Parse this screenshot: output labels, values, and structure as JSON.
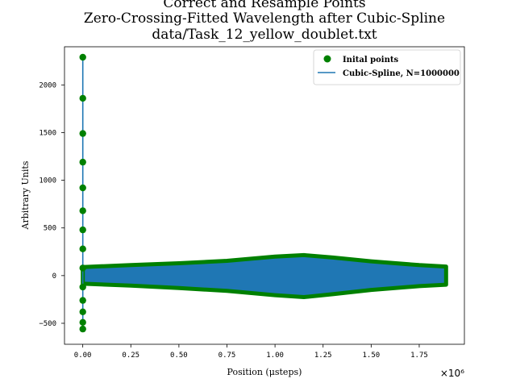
{
  "chart_data": {
    "type": "scatter",
    "title_lines": [
      "Correct and Resample Points",
      "Zero-Crossing-Fitted Wavelength after Cubic-Spline",
      "data/Task_12_yellow_doublet.txt"
    ],
    "xlabel": "Position (μsteps)",
    "ylabel": "Arbitrary Units",
    "x_offset_label": "×10⁶",
    "x_scale": 1000000,
    "xlim": [
      -95000,
      1985000
    ],
    "ylim": [
      -720,
      2400
    ],
    "xticks": [
      0,
      250000,
      500000,
      750000,
      1000000,
      1250000,
      1500000,
      1750000
    ],
    "xtick_labels": [
      "0.00",
      "0.25",
      "0.50",
      "0.75",
      "1.00",
      "1.25",
      "1.50",
      "1.75"
    ],
    "yticks": [
      -500,
      0,
      500,
      1000,
      1500,
      2000
    ],
    "ytick_labels": [
      "−500",
      "0",
      "500",
      "1000",
      "1500",
      "2000"
    ],
    "grid": false,
    "legend_position": "top-right",
    "series": [
      {
        "name": "Inital points",
        "kind": "scatter",
        "color": "#008000",
        "x": [
          0,
          0,
          0,
          0,
          0,
          0,
          0,
          0,
          0,
          0,
          0,
          0,
          0,
          0
        ],
        "y": [
          2290,
          1860,
          1490,
          1190,
          920,
          680,
          480,
          280,
          80,
          -120,
          -260,
          -380,
          -490,
          -560
        ]
      },
      {
        "name": "Cubic-Spline, N=1000000",
        "kind": "line",
        "color": "#1f77b4",
        "x": [
          0,
          0
        ],
        "y": [
          -560,
          2290
        ]
      }
    ],
    "band": {
      "fill_color": "#1f77b4",
      "edge_color": "#008000",
      "x_start": 0,
      "x_end": 1890000,
      "upper_envelope": {
        "x": [
          0,
          250000,
          500000,
          750000,
          1000000,
          1150000,
          1300000,
          1500000,
          1750000,
          1890000
        ],
        "y": [
          90,
          110,
          130,
          155,
          200,
          215,
          190,
          150,
          110,
          95
        ]
      },
      "lower_envelope": {
        "x": [
          0,
          250000,
          500000,
          750000,
          1000000,
          1150000,
          1300000,
          1500000,
          1750000,
          1890000
        ],
        "y": [
          -85,
          -105,
          -130,
          -160,
          -205,
          -225,
          -195,
          -150,
          -110,
          -95
        ]
      }
    }
  }
}
